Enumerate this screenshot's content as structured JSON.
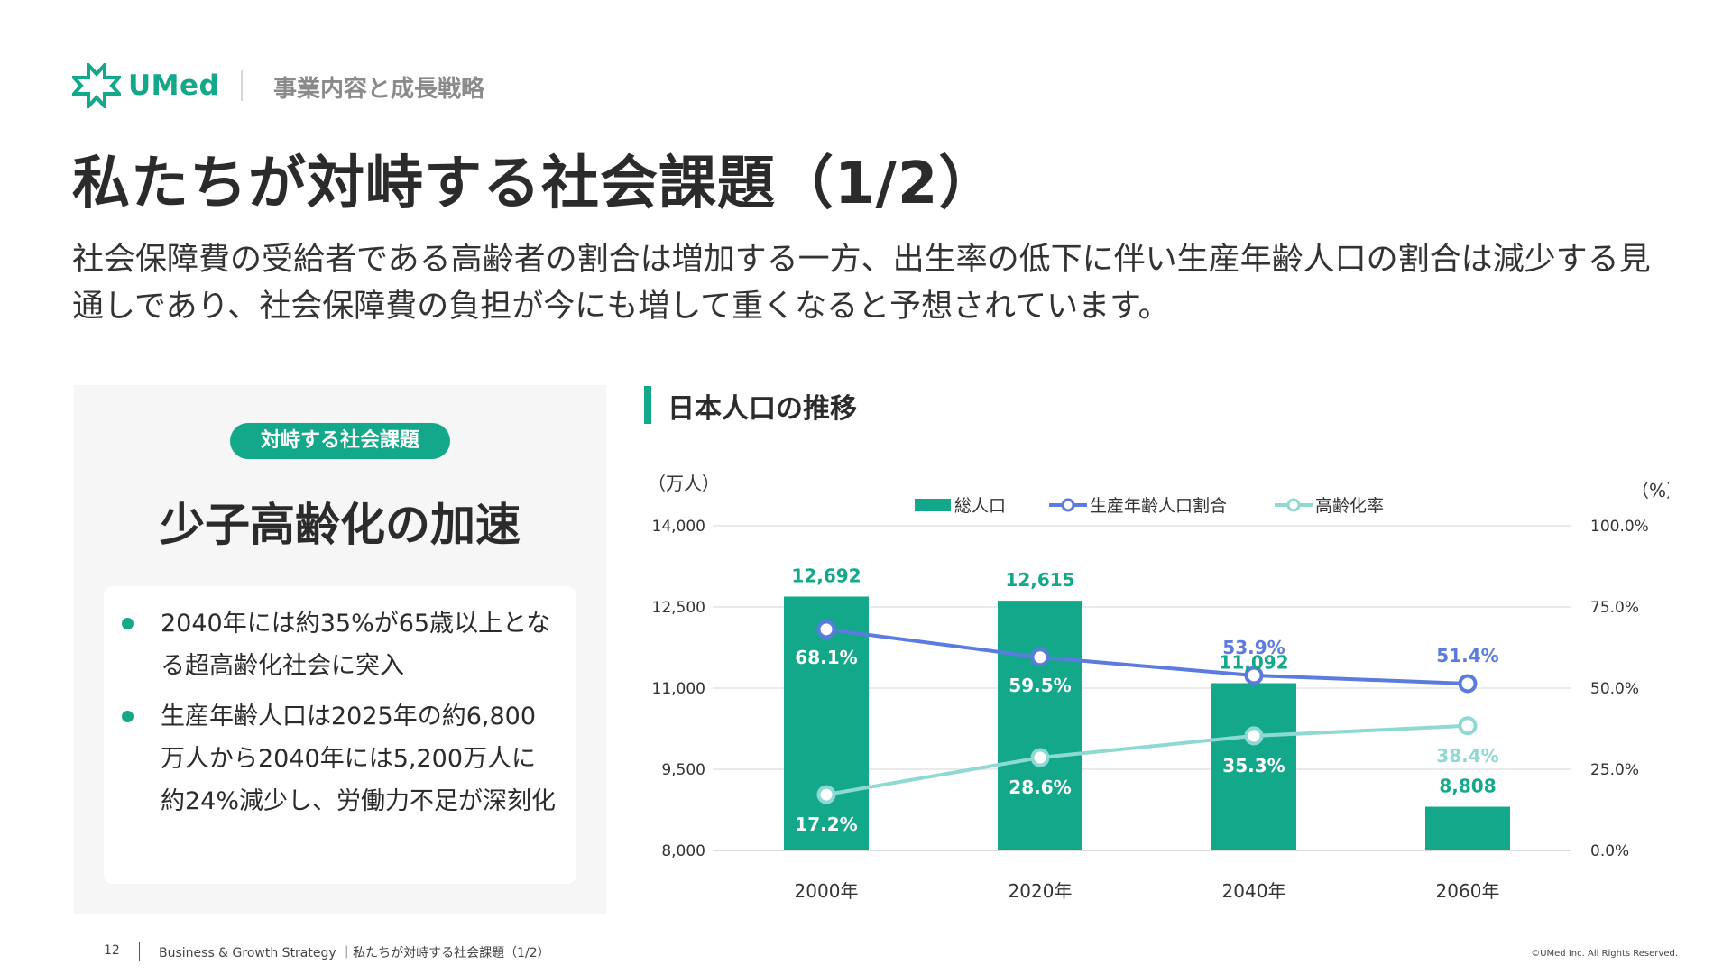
{
  "brand": {
    "name": "UMed",
    "color": "#13a889"
  },
  "header": {
    "section": "事業内容と成長戦略"
  },
  "title": "私たちが対峙する社会課題（1/2）",
  "lead": "社会保障費の受給者である高齢者の割合は増加する一方、出生率の低下に伴い生産年齢人口の割合は減少する見通しであり、社会保障費の負担が今にも増して重くなると予想されています。",
  "left_panel": {
    "tag": "対峙する社会課題",
    "headline": "少子高齢化の加速",
    "bullets": [
      "2040年には約35%が65歳以上となる超高齢化社会に突入",
      "生産年齢人口は2025年の約6,800万人から2040年には5,200万人に約24%減少し、労働力不足が深刻化"
    ]
  },
  "chart_title": "日本人口の推移",
  "chart_data": {
    "type": "bar",
    "categories": [
      "2000年",
      "2020年",
      "2040年",
      "2060年"
    ],
    "series": [
      {
        "name": "総人口",
        "kind": "bar",
        "axis": "left",
        "values": [
          12692,
          12615,
          11092,
          8808
        ],
        "labels": [
          "12,692",
          "12,615",
          "11,092",
          "8,808"
        ],
        "color": "#13a889"
      },
      {
        "name": "生産年齢人口割合",
        "kind": "line",
        "axis": "right",
        "values": [
          68.1,
          59.5,
          53.9,
          51.4
        ],
        "labels": [
          "68.1%",
          "59.5%",
          "53.9%",
          "51.4%"
        ],
        "color": "#5b7be0"
      },
      {
        "name": "高齢化率",
        "kind": "line",
        "axis": "right",
        "values": [
          17.2,
          28.6,
          35.3,
          38.4
        ],
        "labels": [
          "17.2%",
          "28.6%",
          "35.3%",
          "38.4%"
        ],
        "color": "#8fd9d3"
      }
    ],
    "ylabel_left": "（万人）",
    "ylabel_right": "（%）",
    "ylim_left": [
      8000,
      14000
    ],
    "ylim_right": [
      0,
      100
    ],
    "yticks_left": [
      "14,000",
      "12,500",
      "11,000",
      "9,500",
      "8,000"
    ],
    "yticks_right": [
      "100.0%",
      "75.0%",
      "50.0%",
      "25.0%",
      "0.0%"
    ],
    "legend": "top-center",
    "grid": true
  },
  "footer": {
    "page": "12",
    "text": "Business & Growth Strategy ｜私たちが対峙する社会課題（1/2）",
    "copyright": "©UMed Inc. All Rights Reserved."
  }
}
